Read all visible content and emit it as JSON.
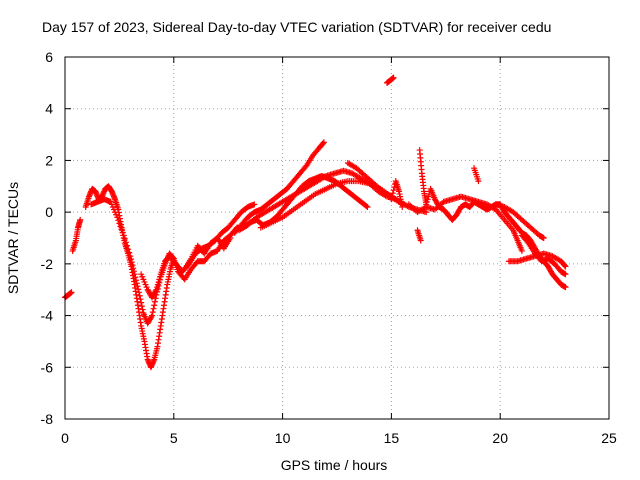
{
  "chart_data": {
    "type": "scatter",
    "title": "Day 157 of 2023, Sidereal Day-to-day VTEC variation (SDTVAR) for receiver cedu",
    "xlabel": "GPS time / hours",
    "ylabel": "SDTVAR / TECUs",
    "xlim": [
      0,
      25
    ],
    "ylim": [
      -8,
      6
    ],
    "xticks": [
      0,
      5,
      10,
      15,
      20,
      25
    ],
    "yticks": [
      -8,
      -6,
      -4,
      -2,
      0,
      2,
      4,
      6
    ],
    "grid": true,
    "marker": "plus",
    "series_color": "#ff0000",
    "series": [
      {
        "name": "SDTVAR",
        "tracks": [
          [
            [
              0.0,
              -3.3
            ],
            [
              0.15,
              -3.2
            ],
            [
              0.3,
              -3.1
            ]
          ],
          [
            [
              0.35,
              -1.5
            ],
            [
              0.5,
              -1.1
            ],
            [
              0.6,
              -0.6
            ],
            [
              0.7,
              -0.3
            ]
          ],
          [
            [
              0.95,
              0.2
            ],
            [
              1.1,
              0.6
            ],
            [
              1.25,
              0.9
            ],
            [
              1.4,
              0.8
            ],
            [
              1.55,
              0.5
            ],
            [
              1.7,
              0.6
            ],
            [
              1.85,
              0.9
            ],
            [
              2.0,
              1.0
            ],
            [
              2.15,
              0.8
            ],
            [
              2.3,
              0.5
            ],
            [
              2.45,
              0.1
            ],
            [
              2.6,
              -0.6
            ],
            [
              2.75,
              -1.2
            ],
            [
              2.9,
              -1.6
            ],
            [
              3.05,
              -2.1
            ],
            [
              3.2,
              -2.8
            ],
            [
              3.35,
              -3.6
            ],
            [
              3.5,
              -4.4
            ],
            [
              3.65,
              -5.0
            ],
            [
              3.8,
              -5.7
            ],
            [
              3.95,
              -6.0
            ],
            [
              4.1,
              -5.7
            ],
            [
              4.25,
              -5.2
            ],
            [
              4.4,
              -4.4
            ],
            [
              4.55,
              -3.6
            ],
            [
              4.7,
              -2.8
            ],
            [
              4.85,
              -2.2
            ],
            [
              5.0,
              -1.8
            ]
          ],
          [
            [
              1.2,
              0.3
            ],
            [
              1.5,
              0.4
            ],
            [
              1.8,
              0.5
            ],
            [
              2.1,
              0.4
            ],
            [
              2.4,
              -0.2
            ],
            [
              2.7,
              -0.9
            ],
            [
              3.0,
              -1.7
            ],
            [
              3.2,
              -2.4
            ],
            [
              3.4,
              -3.1
            ],
            [
              3.6,
              -3.9
            ],
            [
              3.8,
              -4.3
            ],
            [
              4.0,
              -4.0
            ],
            [
              4.2,
              -3.2
            ],
            [
              4.4,
              -2.5
            ],
            [
              4.6,
              -2.0
            ],
            [
              4.8,
              -1.6
            ],
            [
              5.0,
              -1.8
            ],
            [
              5.2,
              -2.3
            ],
            [
              5.5,
              -2.6
            ],
            [
              5.8,
              -2.2
            ],
            [
              6.1,
              -1.9
            ],
            [
              6.4,
              -1.9
            ],
            [
              6.7,
              -1.6
            ],
            [
              7.0,
              -1.5
            ],
            [
              7.3,
              -1.1
            ],
            [
              7.6,
              -0.9
            ],
            [
              7.9,
              -0.6
            ],
            [
              8.2,
              -0.6
            ],
            [
              8.5,
              -0.4
            ],
            [
              8.8,
              -0.3
            ],
            [
              9.1,
              -0.5
            ],
            [
              9.4,
              -0.4
            ],
            [
              9.7,
              -0.2
            ],
            [
              10.0,
              0.1
            ],
            [
              10.3,
              0.4
            ],
            [
              10.6,
              0.7
            ],
            [
              10.9,
              1.0
            ],
            [
              11.2,
              1.2
            ],
            [
              11.5,
              1.3
            ],
            [
              11.8,
              1.4
            ],
            [
              12.1,
              1.3
            ],
            [
              12.4,
              1.2
            ],
            [
              12.7,
              1.0
            ],
            [
              13.0,
              0.8
            ],
            [
              13.3,
              0.6
            ],
            [
              13.6,
              0.4
            ],
            [
              13.9,
              0.2
            ]
          ],
          [
            [
              3.5,
              -2.4
            ],
            [
              3.8,
              -3.0
            ],
            [
              4.0,
              -3.3
            ],
            [
              4.2,
              -3.0
            ],
            [
              4.4,
              -2.4
            ],
            [
              4.6,
              -1.9
            ],
            [
              4.8,
              -1.7
            ],
            [
              5.1,
              -2.0
            ],
            [
              5.4,
              -2.3
            ],
            [
              5.7,
              -2.0
            ],
            [
              6.0,
              -1.6
            ],
            [
              6.3,
              -1.4
            ],
            [
              6.6,
              -1.3
            ],
            [
              6.9,
              -1.1
            ],
            [
              7.2,
              -0.8
            ],
            [
              7.5,
              -0.6
            ],
            [
              7.8,
              -0.3
            ],
            [
              8.1,
              0.0
            ],
            [
              8.4,
              0.2
            ],
            [
              8.7,
              0.3
            ]
          ],
          [
            [
              5.5,
              -2.2
            ],
            [
              5.8,
              -1.8
            ],
            [
              6.1,
              -1.3
            ],
            [
              6.4,
              -1.6
            ],
            [
              6.7,
              -1.2
            ],
            [
              7.0,
              -1.0
            ],
            [
              7.3,
              -1.4
            ],
            [
              7.6,
              -1.0
            ]
          ],
          [
            [
              7.8,
              -0.8
            ],
            [
              8.1,
              -0.5
            ],
            [
              8.4,
              -0.2
            ],
            [
              8.7,
              0.0
            ],
            [
              9.0,
              0.1
            ],
            [
              9.3,
              0.3
            ],
            [
              9.6,
              0.5
            ],
            [
              9.9,
              0.7
            ],
            [
              10.2,
              0.9
            ],
            [
              10.5,
              1.2
            ],
            [
              10.8,
              1.5
            ],
            [
              11.1,
              1.8
            ],
            [
              11.4,
              2.2
            ],
            [
              11.7,
              2.5
            ],
            [
              11.9,
              2.7
            ]
          ],
          [
            [
              8.0,
              -0.7
            ],
            [
              8.4,
              -0.5
            ],
            [
              8.8,
              -0.2
            ],
            [
              9.2,
              0.0
            ],
            [
              9.6,
              0.2
            ],
            [
              10.0,
              0.4
            ],
            [
              10.4,
              0.6
            ],
            [
              10.8,
              0.8
            ],
            [
              11.2,
              1.0
            ],
            [
              11.6,
              1.2
            ],
            [
              12.0,
              1.4
            ],
            [
              12.4,
              1.5
            ],
            [
              12.8,
              1.6
            ],
            [
              13.2,
              1.5
            ],
            [
              13.6,
              1.3
            ],
            [
              14.0,
              1.1
            ],
            [
              14.4,
              0.8
            ],
            [
              14.8,
              0.6
            ],
            [
              15.2,
              0.5
            ]
          ],
          [
            [
              9.0,
              -0.6
            ],
            [
              9.5,
              -0.4
            ],
            [
              10.0,
              -0.2
            ],
            [
              10.5,
              0.1
            ],
            [
              11.0,
              0.4
            ],
            [
              11.5,
              0.7
            ],
            [
              12.0,
              0.9
            ],
            [
              12.5,
              1.1
            ],
            [
              13.0,
              1.2
            ],
            [
              13.5,
              1.2
            ],
            [
              14.0,
              1.1
            ],
            [
              14.5,
              0.9
            ],
            [
              15.0,
              0.6
            ],
            [
              15.5,
              0.3
            ]
          ],
          [
            [
              13.0,
              1.9
            ],
            [
              13.4,
              1.7
            ],
            [
              13.8,
              1.4
            ],
            [
              14.2,
              1.1
            ],
            [
              14.6,
              0.8
            ],
            [
              15.0,
              0.6
            ],
            [
              15.4,
              0.4
            ],
            [
              15.8,
              0.2
            ],
            [
              16.2,
              0.1
            ],
            [
              16.6,
              0.0
            ]
          ],
          [
            [
              14.8,
              5.0
            ],
            [
              14.95,
              5.1
            ],
            [
              15.1,
              5.2
            ]
          ],
          [
            [
              15.0,
              0.5
            ],
            [
              15.2,
              1.2
            ],
            [
              15.35,
              0.8
            ],
            [
              15.5,
              0.2
            ]
          ],
          [
            [
              16.3,
              2.4
            ],
            [
              16.4,
              1.5
            ],
            [
              16.5,
              0.8
            ],
            [
              16.6,
              0.3
            ],
            [
              16.8,
              0.9
            ],
            [
              17.0,
              0.5
            ],
            [
              17.2,
              0.2
            ],
            [
              17.4,
              0.1
            ],
            [
              17.6,
              -0.1
            ],
            [
              17.8,
              -0.3
            ],
            [
              18.0,
              -0.1
            ],
            [
              18.2,
              0.2
            ],
            [
              18.4,
              0.3
            ],
            [
              18.6,
              0.2
            ],
            [
              18.8,
              0.4
            ],
            [
              19.0,
              0.3
            ],
            [
              19.2,
              0.2
            ],
            [
              19.4,
              0.1
            ],
            [
              19.6,
              0.2
            ],
            [
              19.8,
              0.3
            ],
            [
              20.0,
              0.3
            ],
            [
              20.2,
              0.0
            ],
            [
              20.4,
              -0.2
            ],
            [
              20.6,
              -0.4
            ],
            [
              20.8,
              -0.6
            ],
            [
              21.0,
              -0.8
            ],
            [
              21.2,
              -0.9
            ],
            [
              21.4,
              -1.1
            ],
            [
              21.6,
              -1.4
            ],
            [
              21.8,
              -1.7
            ],
            [
              22.0,
              -1.9
            ],
            [
              22.2,
              -2.1
            ],
            [
              22.4,
              -2.4
            ],
            [
              22.6,
              -2.6
            ],
            [
              22.8,
              -2.8
            ],
            [
              23.0,
              -2.9
            ]
          ],
          [
            [
              16.2,
              -0.7
            ],
            [
              16.35,
              -1.1
            ]
          ],
          [
            [
              15.8,
              0.3
            ],
            [
              16.2,
              0.0
            ],
            [
              16.6,
              0.2
            ],
            [
              17.0,
              0.1
            ],
            [
              17.4,
              0.4
            ],
            [
              17.8,
              0.5
            ],
            [
              18.2,
              0.6
            ],
            [
              18.6,
              0.5
            ],
            [
              19.0,
              0.4
            ],
            [
              19.4,
              0.3
            ],
            [
              19.8,
              0.1
            ],
            [
              20.2,
              -0.3
            ],
            [
              20.6,
              -0.7
            ],
            [
              20.8,
              -1.1
            ],
            [
              21.0,
              -1.5
            ]
          ],
          [
            [
              18.8,
              1.7
            ],
            [
              19.0,
              1.2
            ]
          ],
          [
            [
              20.4,
              -1.9
            ],
            [
              20.8,
              -1.9
            ],
            [
              21.2,
              -1.8
            ],
            [
              21.6,
              -1.7
            ],
            [
              22.0,
              -1.6
            ],
            [
              22.4,
              -1.7
            ],
            [
              22.8,
              -1.9
            ],
            [
              23.0,
              -2.1
            ]
          ],
          [
            [
              21.0,
              -0.9
            ],
            [
              21.3,
              -1.2
            ],
            [
              21.6,
              -1.6
            ],
            [
              21.9,
              -1.9
            ],
            [
              22.2,
              -1.8
            ],
            [
              22.5,
              -2.0
            ],
            [
              22.8,
              -2.3
            ],
            [
              23.0,
              -2.4
            ]
          ],
          [
            [
              19.8,
              0.3
            ],
            [
              20.2,
              0.2
            ],
            [
              20.6,
              0.0
            ],
            [
              21.0,
              -0.3
            ],
            [
              21.4,
              -0.6
            ],
            [
              21.8,
              -0.9
            ],
            [
              22.0,
              -1.0
            ]
          ]
        ]
      }
    ]
  }
}
